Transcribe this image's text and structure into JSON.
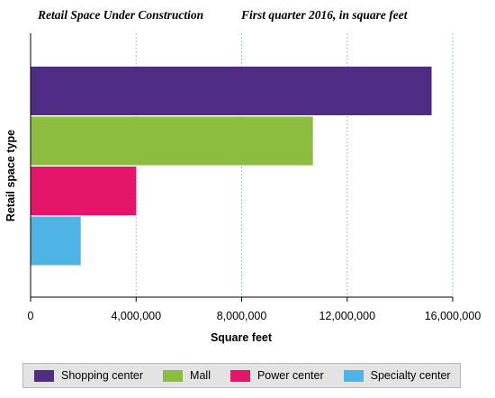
{
  "header": {
    "title": "Retail Space Under Construction",
    "subtitle": "First quarter 2016, in square feet"
  },
  "chart_data": {
    "type": "bar",
    "orientation": "horizontal",
    "title": "Retail Space Under Construction",
    "subtitle": "First quarter 2016, in square feet",
    "xlabel": "Square feet",
    "ylabel": "Retail space type",
    "xlim": [
      0,
      16000000
    ],
    "x_ticks": [
      0,
      4000000,
      8000000,
      12000000,
      16000000
    ],
    "x_tick_labels": [
      "0",
      "4,000,000",
      "8,000,000",
      "12,000,000",
      "16,000,000"
    ],
    "categories": [
      "Shopping center",
      "Mall",
      "Power center",
      "Specialty center"
    ],
    "values": [
      15200000,
      10700000,
      4000000,
      1900000
    ],
    "colors": [
      "#4f2d84",
      "#8cbd3f",
      "#e5156a",
      "#4eb4e6"
    ],
    "grid": "vertical dashed",
    "legend_position": "bottom"
  },
  "legend": {
    "items": [
      {
        "label": "Shopping center",
        "color": "#4f2d84"
      },
      {
        "label": "Mall",
        "color": "#8cbd3f"
      },
      {
        "label": "Power center",
        "color": "#e5156a"
      },
      {
        "label": "Specialty center",
        "color": "#4eb4e6"
      }
    ]
  }
}
